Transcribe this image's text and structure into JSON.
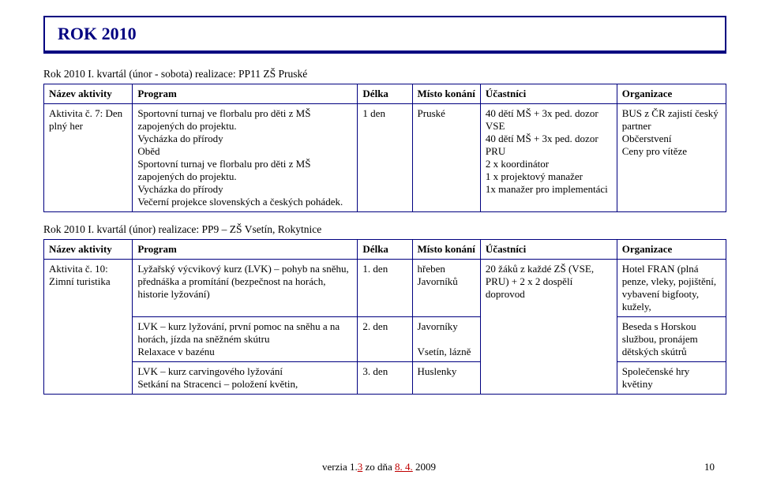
{
  "title": "ROK 2010",
  "section1": {
    "header_plain": "Rok 2010     I. kvartál (únor - sobota)        realizace: PP11 ZŠ Pruské",
    "columns": [
      "Název aktivity",
      "Program",
      "Délka",
      "Místo konání",
      "Účastníci",
      "Organizace"
    ],
    "row": {
      "nazev": "Aktivita č. 7: Den plný her",
      "program": "Sportovní turnaj ve florbalu pro děti z MŠ zapojených do projektu.\nVycházka do přírody\nOběd\nSportovní turnaj ve florbalu pro děti z MŠ zapojených do projektu.\nVycházka do přírody\nVečerní projekce slovenských a českých pohádek.",
      "delka": "1 den",
      "misto": "Pruské",
      "ucastnici": "40 dětí MŠ + 3x ped. dozor VSE\n40 dětí MŠ + 3x ped. dozor PRU\n2 x koordinátor\n1 x projektový manažer\n1x manažer pro implementáci",
      "organizace": "BUS z ČR zajistí český partner\nObčerstvení\nCeny pro vítěze"
    }
  },
  "section2": {
    "header_plain": "Rok 2010     I. kvartál (únor)              realizace: PP9 – ZŠ Vsetín, Rokytnice",
    "columns": [
      "Název aktivity",
      "Program",
      "Délka",
      "Místo konání",
      "Účastníci",
      "Organizace"
    ],
    "rows": [
      {
        "nazev": "Aktivita č. 10: Zimní turistika",
        "program": "Lyžařský výcvikový kurz (LVK) – pohyb na sněhu, přednáška a promítání (bezpečnost na horách, historie lyžování)",
        "delka": "1. den",
        "misto": "hřeben Javorníků",
        "ucastnici": "20 žáků z každé ZŠ (VSE, PRU) + 2 x 2 dospělí doprovod",
        "organizace": "Hotel FRAN (plná penze, vleky, pojištění, vybavení bigfooty, kužely,"
      },
      {
        "nazev": "",
        "program": "LVK – kurz lyžování, první pomoc na sněhu a na horách, jízda na sněžném skútru\nRelaxace v bazénu",
        "delka": "2. den",
        "misto": "Javorníky\n\nVsetín, lázně",
        "ucastnici": "",
        "organizace": "Beseda s Horskou službou, pronájem dětských skútrů"
      },
      {
        "nazev": "",
        "program": "LVK – kurz carvingového lyžování\nSetkání na Stracenci – položení květin,",
        "delka": "3. den",
        "misto": "Huslenky",
        "ucastnici": "",
        "organizace": "Společenské hry\nkvětiny"
      }
    ]
  },
  "footer": {
    "prefix": "verzia 1.",
    "d1": "3",
    "mid": " zo dňa ",
    "d2": "8. 4.",
    "suffix": " 2009",
    "page": "10"
  }
}
